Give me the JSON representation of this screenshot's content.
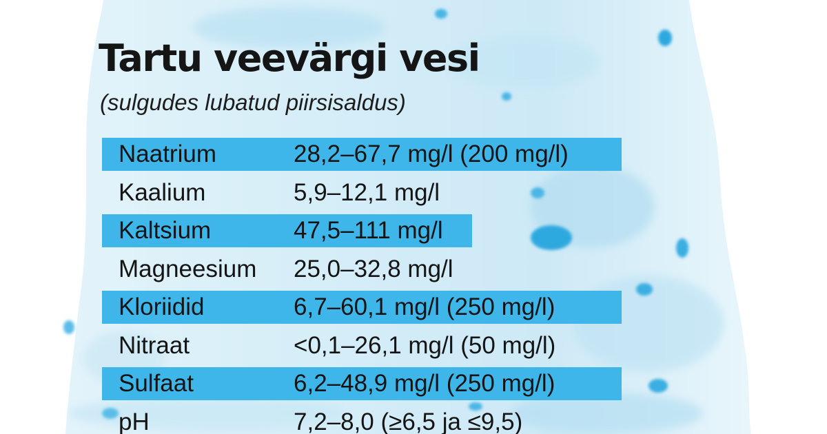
{
  "title": "Tartu veevärgi vesi",
  "subtitle": "(sulgudes lubatud piirsisaldus)",
  "colors": {
    "highlight_band": "#3fb6ea",
    "text": "#141414",
    "background": "#ffffff",
    "water_texture": "#bfe5f5"
  },
  "rows": [
    {
      "name": "Naatrium",
      "value": "28,2–67,7 mg/l (200 mg/l)",
      "highlighted": true
    },
    {
      "name": "Kaalium",
      "value": "5,9–12,1 mg/l",
      "highlighted": false
    },
    {
      "name": "Kaltsium",
      "value": "47,5–111 mg/l",
      "highlighted": true
    },
    {
      "name": "Magneesium",
      "value": "25,0–32,8 mg/l",
      "highlighted": false
    },
    {
      "name": "Kloriidid",
      "value": "6,7–60,1 mg/l (250 mg/l)",
      "highlighted": true
    },
    {
      "name": "Nitraat",
      "value": "<0,1–26,1 mg/l (50 mg/l)",
      "highlighted": false
    },
    {
      "name": "Sulfaat",
      "value": "6,2–48,9 mg/l (250 mg/l)",
      "highlighted": true
    },
    {
      "name": "pH",
      "value": "7,2–8,0 (≥6,5 ja ≤9,5)",
      "highlighted": false
    }
  ]
}
